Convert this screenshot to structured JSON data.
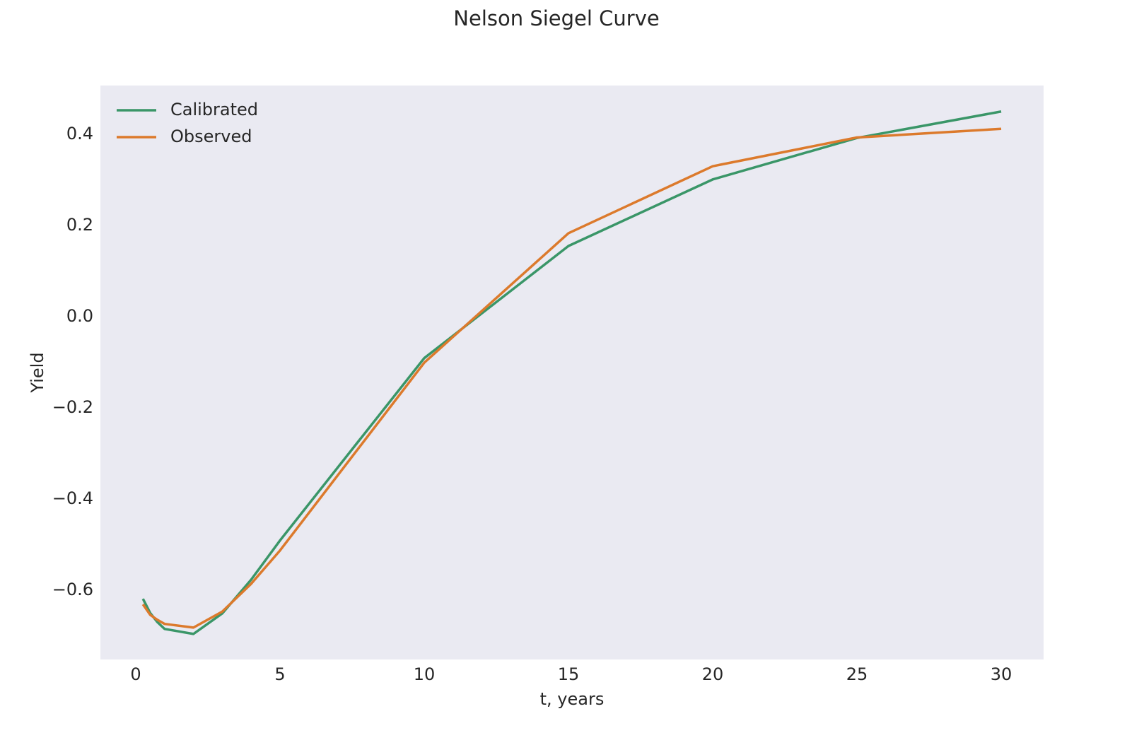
{
  "chart_data": {
    "type": "line",
    "title": "Nelson Siegel Curve",
    "x_label": "t, years",
    "y_label": "Yield",
    "x": [
      0.25,
      0.5,
      0.75,
      1,
      2,
      3,
      4,
      5,
      10,
      15,
      20,
      25,
      30
    ],
    "series": [
      {
        "name": "Calibrated",
        "color": "#3a9668",
        "values": [
          -0.619,
          -0.65,
          -0.67,
          -0.685,
          -0.696,
          -0.651,
          -0.577,
          -0.491,
          -0.091,
          0.155,
          0.301,
          0.392,
          0.45
        ]
      },
      {
        "name": "Observed",
        "color": "#dc7a2c",
        "values": [
          -0.631,
          -0.654,
          -0.665,
          -0.674,
          -0.682,
          -0.647,
          -0.586,
          -0.513,
          -0.101,
          0.183,
          0.33,
          0.393,
          0.412
        ]
      }
    ],
    "xlim": [
      -1.225,
      31.47
    ],
    "ylim": [
      -0.752,
      0.507
    ],
    "xticks": [
      0,
      5,
      10,
      15,
      20,
      25,
      30
    ],
    "yticks": [
      {
        "value": -0.6,
        "label": "−0.6"
      },
      {
        "value": -0.4,
        "label": "−0.4"
      },
      {
        "value": -0.2,
        "label": "−0.2"
      },
      {
        "value": 0,
        "label": "0.0"
      },
      0.2,
      0.4
    ],
    "grid": false,
    "legend": "upper-left",
    "background": "#eaeaf2"
  }
}
